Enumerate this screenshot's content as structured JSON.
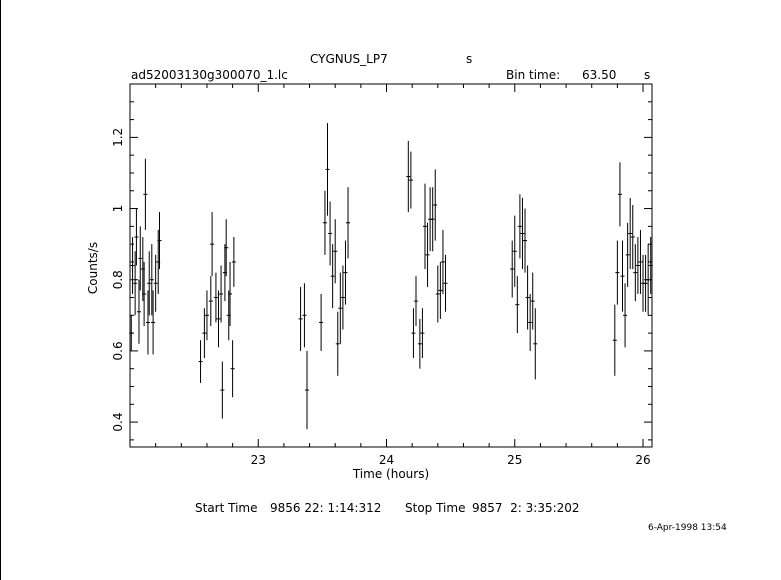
{
  "header": {
    "title": "CYGNUS_LP7",
    "title_suffix": "s",
    "filename": "ad52003130g300070_1.lc",
    "bin_label": "Bin time:",
    "bin_value": "63.50",
    "bin_unit": "s"
  },
  "footer": {
    "start_label": "Start Time",
    "start_value": "9856 22: 1:14:312",
    "stop_label": "Stop Time",
    "stop_value": "9857  2: 3:35:202",
    "date_stamp": "6-Apr-1998 13:54"
  },
  "chart_data": {
    "type": "scatter",
    "style": "error bars, black on white",
    "xlabel": "Time (hours)",
    "ylabel": "Counts/s",
    "xlim": [
      22.0,
      26.07
    ],
    "ylim": [
      0.33,
      1.35
    ],
    "x_ticks": [
      23,
      24,
      25,
      26
    ],
    "y_ticks": [
      0.4,
      0.6,
      0.8,
      1,
      1.2
    ],
    "x_tick_labels": [
      "23",
      "24",
      "25",
      "26"
    ],
    "y_tick_labels": [
      "0.4",
      "0.6",
      "0.8",
      "1",
      "1.2"
    ],
    "grid": false,
    "points": [
      [
        22.01,
        0.65,
        0.05
      ],
      [
        22.02,
        0.84,
        0.08
      ],
      [
        22.04,
        0.79,
        0.09
      ],
      [
        22.05,
        0.92,
        0.08
      ],
      [
        22.07,
        0.71,
        0.09
      ],
      [
        22.08,
        0.86,
        0.09
      ],
      [
        22.1,
        0.83,
        0.09
      ],
      [
        22.11,
        0.76,
        0.09
      ],
      [
        22.12,
        1.04,
        0.1
      ],
      [
        22.14,
        0.68,
        0.09
      ],
      [
        22.15,
        0.79,
        0.09
      ],
      [
        22.17,
        0.8,
        0.1
      ],
      [
        22.18,
        0.68,
        0.09
      ],
      [
        22.2,
        0.79,
        0.08
      ],
      [
        22.22,
        0.85,
        0.09
      ],
      [
        22.23,
        0.91,
        0.08
      ],
      [
        22.55,
        0.57,
        0.06
      ],
      [
        22.58,
        0.65,
        0.07
      ],
      [
        22.6,
        0.7,
        0.07
      ],
      [
        22.63,
        0.74,
        0.07
      ],
      [
        22.64,
        0.9,
        0.09
      ],
      [
        22.67,
        0.75,
        0.07
      ],
      [
        22.69,
        0.69,
        0.08
      ],
      [
        22.71,
        0.76,
        0.08
      ],
      [
        22.72,
        0.49,
        0.08
      ],
      [
        22.74,
        0.82,
        0.08
      ],
      [
        22.75,
        0.89,
        0.08
      ],
      [
        22.77,
        0.7,
        0.07
      ],
      [
        22.78,
        0.76,
        0.09
      ],
      [
        22.8,
        0.55,
        0.08
      ],
      [
        22.81,
        0.85,
        0.07
      ],
      [
        23.33,
        0.69,
        0.09
      ],
      [
        23.36,
        0.7,
        0.09
      ],
      [
        23.38,
        0.49,
        0.11
      ],
      [
        23.49,
        0.68,
        0.08
      ],
      [
        23.52,
        0.96,
        0.09
      ],
      [
        23.54,
        1.11,
        0.13
      ],
      [
        23.56,
        0.93,
        0.09
      ],
      [
        23.58,
        0.81,
        0.09
      ],
      [
        23.6,
        0.88,
        0.09
      ],
      [
        23.62,
        0.62,
        0.09
      ],
      [
        23.64,
        0.72,
        0.1
      ],
      [
        23.66,
        0.75,
        0.09
      ],
      [
        23.68,
        0.82,
        0.09
      ],
      [
        23.7,
        0.96,
        0.1
      ],
      [
        24.17,
        1.09,
        0.1
      ],
      [
        24.19,
        1.08,
        0.08
      ],
      [
        24.21,
        0.65,
        0.07
      ],
      [
        24.23,
        0.74,
        0.07
      ],
      [
        24.26,
        0.62,
        0.07
      ],
      [
        24.28,
        0.65,
        0.07
      ],
      [
        24.3,
        0.95,
        0.12
      ],
      [
        24.32,
        0.87,
        0.09
      ],
      [
        24.34,
        0.97,
        0.09
      ],
      [
        24.36,
        0.97,
        0.09
      ],
      [
        24.38,
        1.01,
        0.1
      ],
      [
        24.4,
        0.76,
        0.08
      ],
      [
        24.42,
        0.77,
        0.08
      ],
      [
        24.44,
        0.85,
        0.09
      ],
      [
        24.46,
        0.79,
        0.08
      ],
      [
        24.98,
        0.83,
        0.08
      ],
      [
        25.0,
        0.88,
        0.1
      ],
      [
        25.02,
        0.73,
        0.08
      ],
      [
        25.04,
        0.95,
        0.09
      ],
      [
        25.06,
        0.93,
        0.1
      ],
      [
        25.08,
        0.91,
        0.09
      ],
      [
        25.1,
        0.75,
        0.09
      ],
      [
        25.12,
        0.68,
        0.08
      ],
      [
        25.14,
        0.74,
        0.08
      ],
      [
        25.16,
        0.62,
        0.1
      ],
      [
        25.78,
        0.63,
        0.1
      ],
      [
        25.8,
        0.82,
        0.09
      ],
      [
        25.82,
        1.04,
        0.09
      ],
      [
        25.84,
        0.81,
        0.1
      ],
      [
        25.86,
        0.7,
        0.09
      ],
      [
        25.88,
        0.87,
        0.09
      ],
      [
        25.9,
        0.93,
        0.1
      ],
      [
        25.92,
        0.92,
        0.09
      ],
      [
        25.94,
        0.82,
        0.08
      ],
      [
        25.96,
        0.84,
        0.08
      ],
      [
        25.98,
        0.85,
        0.09
      ],
      [
        26.0,
        0.79,
        0.08
      ],
      [
        26.02,
        0.79,
        0.08
      ],
      [
        26.04,
        0.8,
        0.1
      ],
      [
        26.06,
        0.84,
        0.08
      ]
    ]
  }
}
